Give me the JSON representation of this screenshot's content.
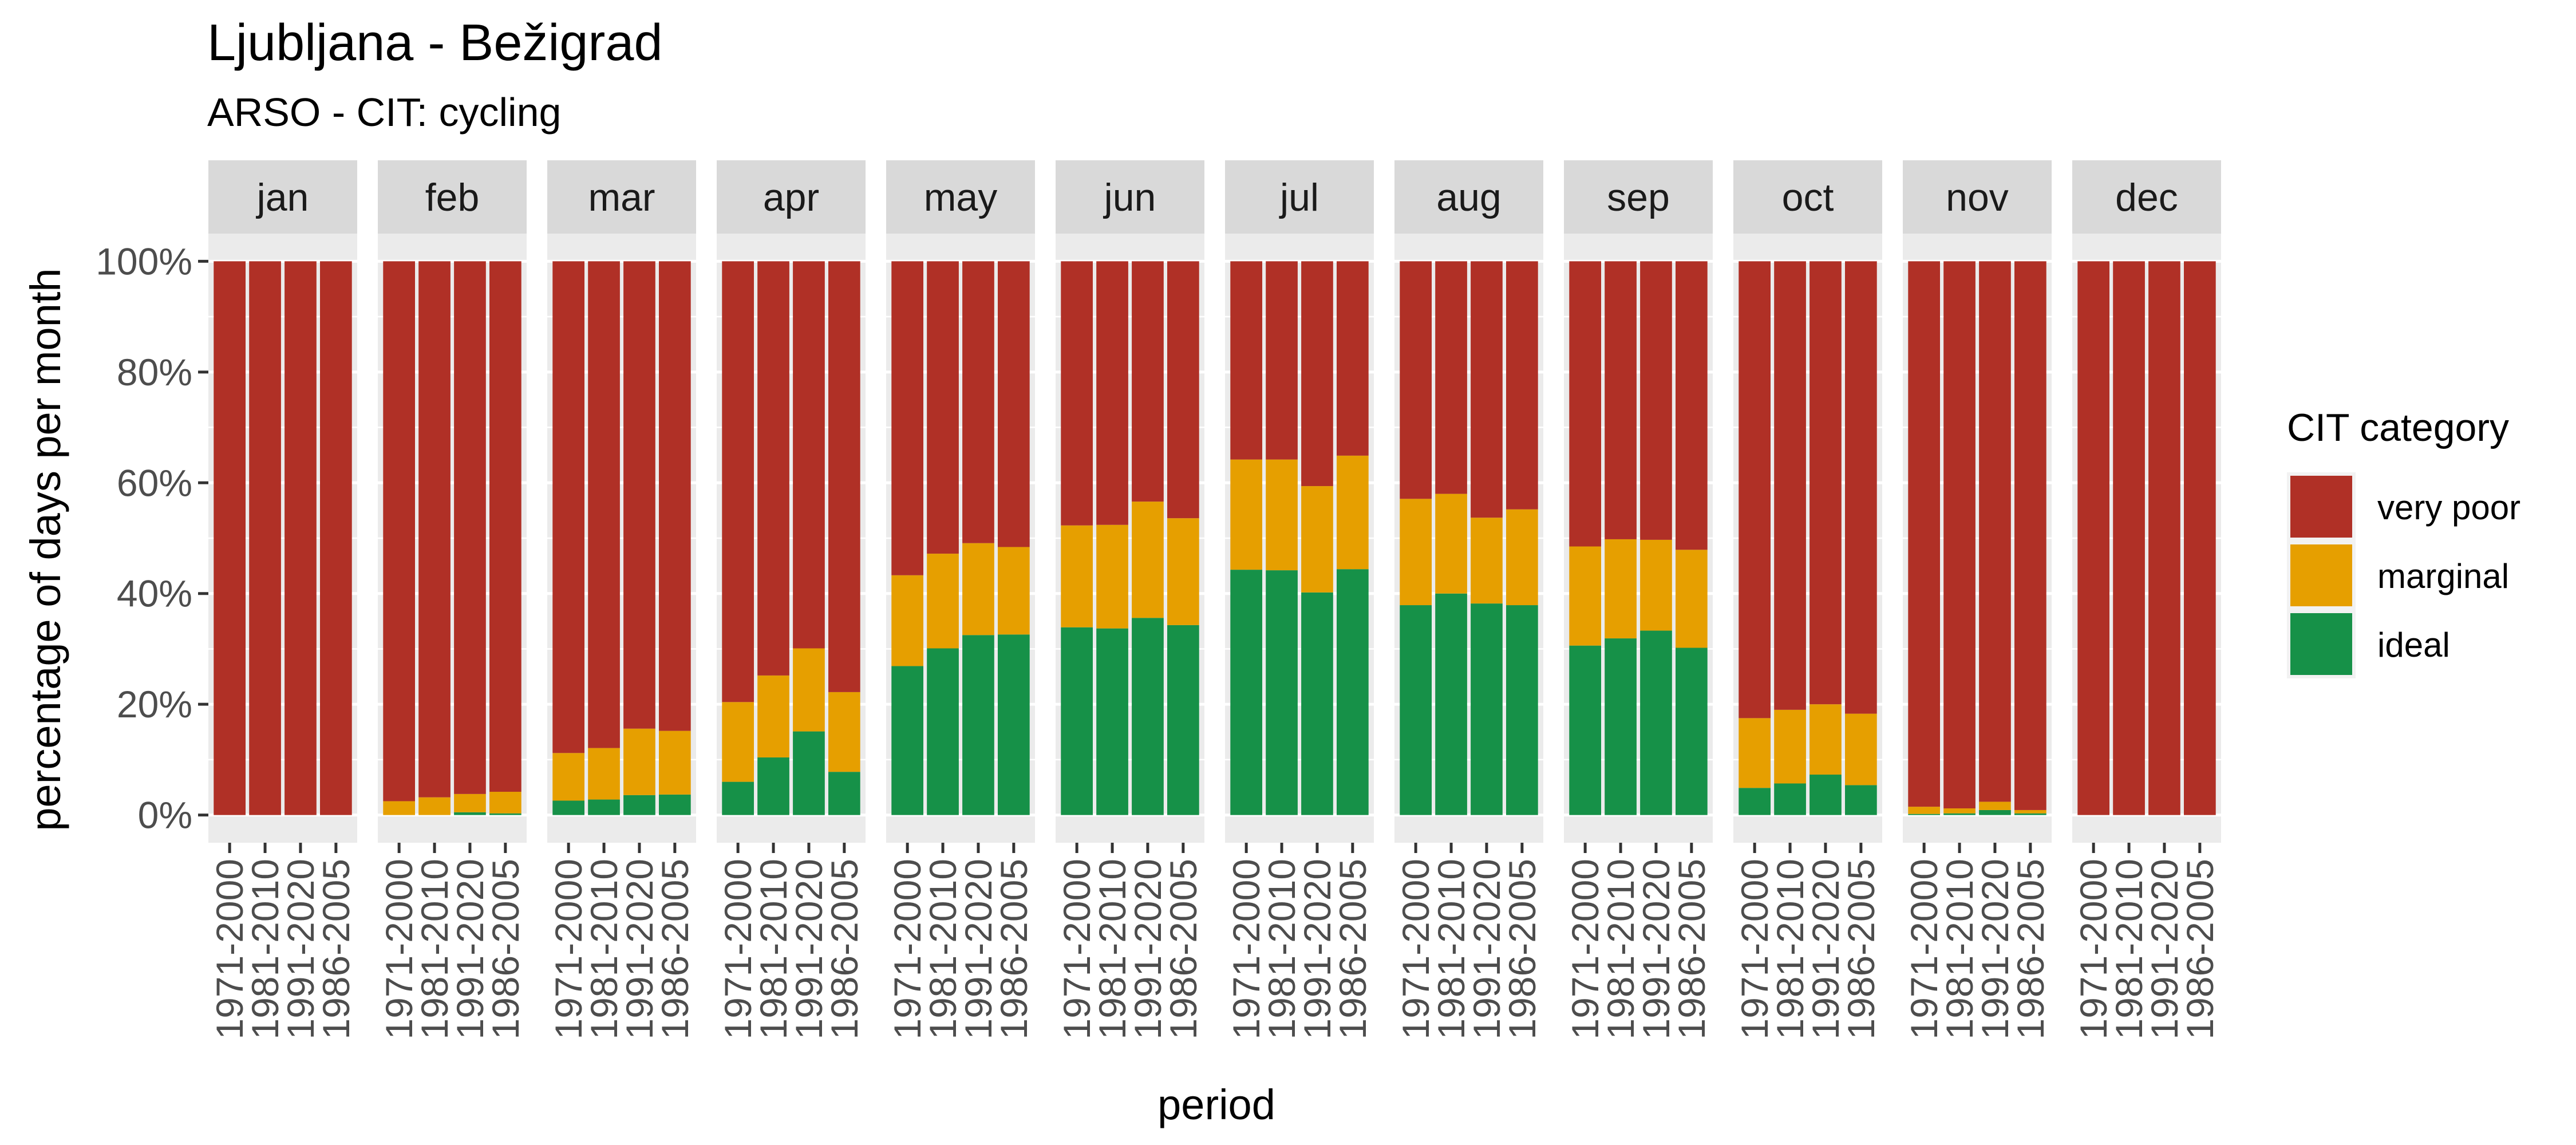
{
  "chart_data": {
    "type": "bar",
    "stacked": true,
    "faceted": true,
    "title": "Ljubljana - Bežigrad",
    "subtitle": "ARSO - CIT: cycling",
    "xlabel": "period",
    "ylabel": "percentage of days per month",
    "ylim": [
      0,
      100
    ],
    "y_ticks": [
      0,
      20,
      40,
      60,
      80,
      100
    ],
    "y_tick_labels": [
      "0%",
      "20%",
      "40%",
      "60%",
      "80%",
      "100%"
    ],
    "grid": true,
    "legend": {
      "title": "CIT category",
      "placement": "right",
      "items": [
        {
          "label": "very poor",
          "color": "#B03026"
        },
        {
          "label": "marginal",
          "color": "#E69F00"
        },
        {
          "label": "ideal",
          "color": "#169148"
        }
      ]
    },
    "categories": [
      "1971-2000",
      "1981-2010",
      "1991-2020",
      "1986-2005"
    ],
    "facets": [
      {
        "name": "jan",
        "ideal": [
          0,
          0,
          0,
          0
        ],
        "marginal": [
          0,
          0,
          0,
          0
        ],
        "very_poor": [
          100,
          100,
          100,
          100
        ]
      },
      {
        "name": "feb",
        "ideal": [
          0,
          0,
          0.5,
          0.3
        ],
        "marginal": [
          2.5,
          3.2,
          3.3,
          3.9
        ],
        "very_poor": [
          97.5,
          96.8,
          96.2,
          95.8
        ]
      },
      {
        "name": "mar",
        "ideal": [
          2.6,
          2.8,
          3.6,
          3.7
        ],
        "marginal": [
          8.6,
          9.3,
          12.0,
          11.5
        ],
        "very_poor": [
          88.8,
          87.9,
          84.4,
          84.8
        ]
      },
      {
        "name": "apr",
        "ideal": [
          6.0,
          10.4,
          15.1,
          7.8
        ],
        "marginal": [
          14.4,
          14.8,
          15.0,
          14.4
        ],
        "very_poor": [
          79.6,
          74.8,
          69.9,
          77.8
        ]
      },
      {
        "name": "may",
        "ideal": [
          26.9,
          30.1,
          32.5,
          32.6
        ],
        "marginal": [
          16.4,
          17.1,
          16.6,
          15.8
        ],
        "very_poor": [
          56.7,
          52.8,
          50.9,
          51.6
        ]
      },
      {
        "name": "jun",
        "ideal": [
          33.9,
          33.7,
          35.6,
          34.3
        ],
        "marginal": [
          18.4,
          18.7,
          21.0,
          19.3
        ],
        "very_poor": [
          47.7,
          47.6,
          43.4,
          46.4
        ]
      },
      {
        "name": "jul",
        "ideal": [
          44.3,
          44.2,
          40.2,
          44.4
        ],
        "marginal": [
          19.9,
          20.0,
          19.2,
          20.5
        ],
        "very_poor": [
          35.8,
          35.8,
          40.6,
          35.1
        ]
      },
      {
        "name": "aug",
        "ideal": [
          37.9,
          40.0,
          38.2,
          37.9
        ],
        "marginal": [
          19.2,
          18.0,
          15.5,
          17.3
        ],
        "very_poor": [
          42.9,
          42.0,
          46.3,
          44.8
        ]
      },
      {
        "name": "sep",
        "ideal": [
          30.6,
          31.9,
          33.3,
          30.2
        ],
        "marginal": [
          17.9,
          17.9,
          16.4,
          17.7
        ],
        "very_poor": [
          51.5,
          50.2,
          50.3,
          52.1
        ]
      },
      {
        "name": "oct",
        "ideal": [
          4.9,
          5.7,
          7.3,
          5.4
        ],
        "marginal": [
          12.6,
          13.3,
          12.7,
          12.9
        ],
        "very_poor": [
          82.5,
          81.0,
          80.0,
          81.7
        ]
      },
      {
        "name": "nov",
        "ideal": [
          0.2,
          0.3,
          0.9,
          0.3
        ],
        "marginal": [
          1.3,
          0.9,
          1.5,
          0.6
        ],
        "very_poor": [
          98.5,
          98.8,
          97.6,
          99.1
        ]
      },
      {
        "name": "dec",
        "ideal": [
          0,
          0,
          0,
          0
        ],
        "marginal": [
          0,
          0,
          0,
          0
        ],
        "very_poor": [
          100,
          100,
          100,
          100
        ]
      }
    ]
  }
}
